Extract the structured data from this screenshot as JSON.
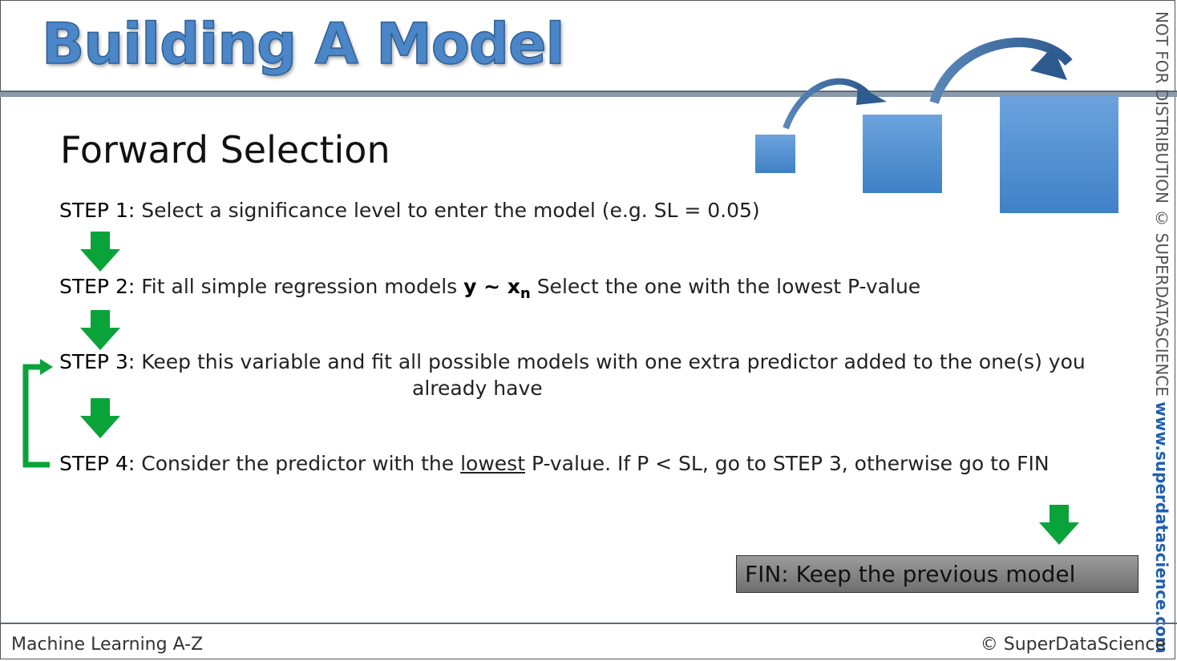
{
  "title": "Building A Model",
  "subtitle": "Forward Selection",
  "steps": [
    {
      "label": "STEP 1:",
      "text": "Select a significance level to enter the model (e.g. SL = 0.05)"
    },
    {
      "label": "STEP 2:",
      "text_before": "Fit all simple regression models",
      "formula": "y ~ x",
      "subscript": "n",
      "text_after": "Select the one with the lowest P-value"
    },
    {
      "label": "STEP 3:",
      "text": "Keep this variable and fit all possible models with one extra predictor added to the one(s) you",
      "text_line2": "already have"
    },
    {
      "label": "STEP 4:",
      "text_before": "Consider the predictor with the",
      "underlined": "lowest",
      "text_after": "P-value. If P < SL, go to STEP 3, otherwise go to FIN"
    }
  ],
  "fin": {
    "label": "FIN:",
    "text": "Keep the previous model"
  },
  "side_text": {
    "notice": "NOT FOR DISTRIBUTION © SUPERDATASCIENCE",
    "url": "www.superdatascience.com"
  },
  "footer": {
    "left": "Machine Learning A-Z",
    "right": "© SuperDataScience"
  },
  "colors": {
    "title_blue": "#4a86c8",
    "arrow_green": "#0aa33a",
    "square_blue": "#4a8bd0",
    "fin_gray": "#858585"
  }
}
